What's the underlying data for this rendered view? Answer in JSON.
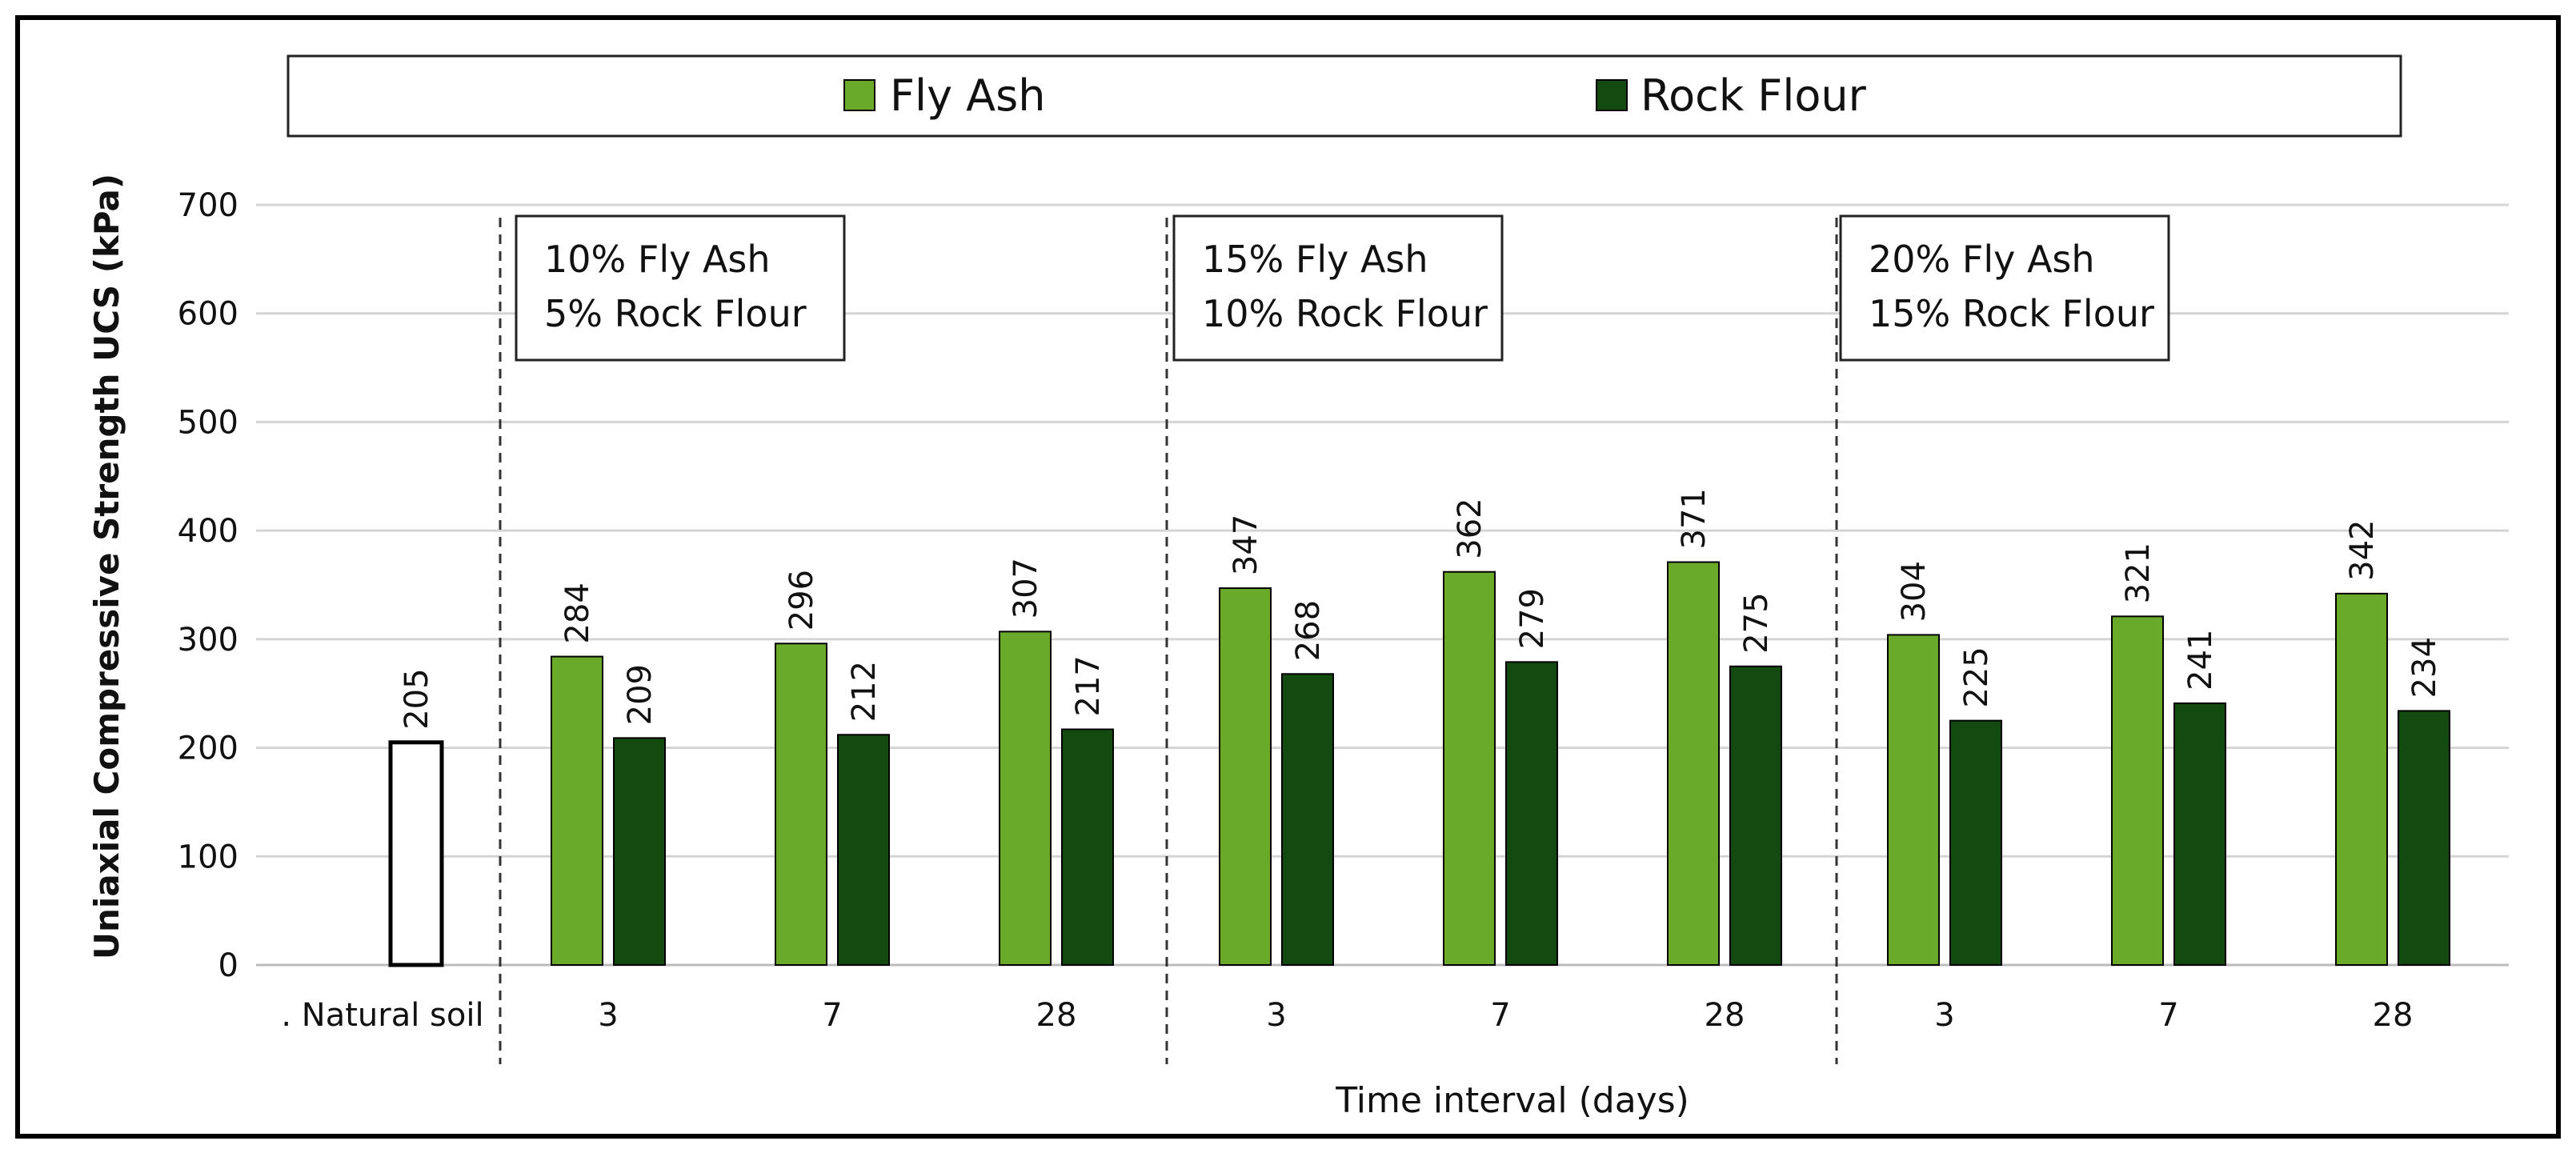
{
  "chart_data": {
    "type": "bar",
    "title": "",
    "xlabel": "Time interval (days)",
    "ylabel": "Uniaxial Compressive Strength UCS (kPa)",
    "ylim": [
      0,
      700
    ],
    "yticks": [
      0,
      100,
      200,
      300,
      400,
      500,
      600,
      700
    ],
    "grid": true,
    "legend_position": "top",
    "colors": {
      "fly_ash": "#6aaa2a",
      "rock_flour": "#134a10",
      "natural_soil_fill": "#ffffff",
      "outline": "#000000"
    },
    "series": [
      {
        "name": "Fly Ash",
        "color": "#6aaa2a"
      },
      {
        "name": "Rock Flour",
        "color": "#134a10"
      }
    ],
    "natural_soil": {
      "label": ". Natural soil",
      "value": 205
    },
    "groups": [
      {
        "mix_line1": "10% Fly Ash",
        "mix_line2": "5% Rock Flour",
        "intervals": [
          {
            "day": "3",
            "fly_ash": 284,
            "rock_flour": 209
          },
          {
            "day": "7",
            "fly_ash": 296,
            "rock_flour": 212
          },
          {
            "day": "28",
            "fly_ash": 307,
            "rock_flour": 217
          }
        ]
      },
      {
        "mix_line1": "15% Fly Ash",
        "mix_line2": "10% Rock Flour",
        "intervals": [
          {
            "day": "3",
            "fly_ash": 347,
            "rock_flour": 268
          },
          {
            "day": "7",
            "fly_ash": 362,
            "rock_flour": 279
          },
          {
            "day": "28",
            "fly_ash": 371,
            "rock_flour": 275
          }
        ]
      },
      {
        "mix_line1": "20% Fly Ash",
        "mix_line2": "15% Rock Flour",
        "intervals": [
          {
            "day": "3",
            "fly_ash": 304,
            "rock_flour": 225
          },
          {
            "day": "7",
            "fly_ash": 321,
            "rock_flour": 241
          },
          {
            "day": "28",
            "fly_ash": 342,
            "rock_flour": 234
          }
        ]
      }
    ]
  }
}
